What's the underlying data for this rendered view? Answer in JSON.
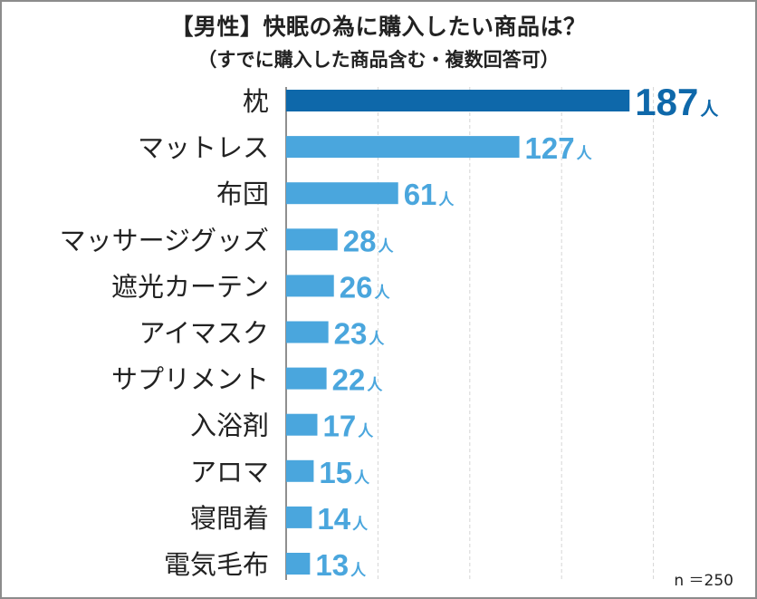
{
  "chart_data": {
    "type": "bar",
    "orientation": "horizontal",
    "title": "【男性】快眠の為に購入したい商品は？",
    "subtitle": "（すでに購入した商品含む・複数回答可）",
    "categories": [
      "枕",
      "マットレス",
      "布団",
      "マッサージグッズ",
      "遮光カーテン",
      "アイマスク",
      "サプリメント",
      "入浴剤",
      "アロマ",
      "寝間着",
      "電気毛布"
    ],
    "values": [
      187,
      127,
      61,
      28,
      26,
      23,
      22,
      17,
      15,
      14,
      13
    ],
    "unit": "人",
    "xlim": [
      0,
      200
    ],
    "grid": true,
    "highlight_index": 0,
    "sample_note": "n ＝250",
    "colors": {
      "highlight": "#0e68aa",
      "bar": "#4aa6dd",
      "grid": "#d5d5d5",
      "axis": "#6a6a6a"
    }
  }
}
